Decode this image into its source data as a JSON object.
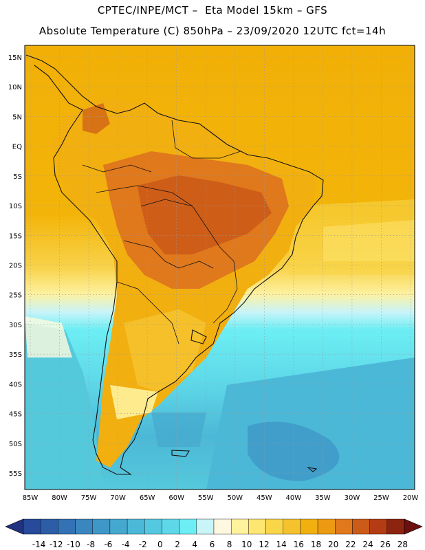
{
  "header": {
    "line1": "CPTEC/INPE/MCT –  Eta Model 15km – GFS",
    "line2": "Absolute Temperature (C) 850hPa – 23/09/2020 12UTC fct=14h"
  },
  "map": {
    "lon_labels": [
      "85W",
      "80W",
      "75W",
      "70W",
      "65W",
      "60W",
      "55W",
      "50W",
      "45W",
      "40W",
      "35W",
      "30W",
      "25W",
      "20W"
    ],
    "lat_labels": [
      "15N",
      "10N",
      "5N",
      "EQ",
      "5S",
      "10S",
      "15S",
      "20S",
      "25S",
      "30S",
      "35S",
      "40S",
      "45S",
      "50S",
      "55S"
    ],
    "grid": "dotted",
    "variable_colors": {
      "ocean_north": "#f2b007",
      "ocean_south": "#55c9dc",
      "land_warm": "#e6861c",
      "land_hot": "#d26a1e"
    }
  },
  "colorbar": {
    "labels": [
      "-14",
      "-12",
      "-10",
      "-8",
      "-6",
      "-4",
      "-2",
      "0",
      "2",
      "4",
      "6",
      "8",
      "10",
      "12",
      "14",
      "16",
      "18",
      "20",
      "22",
      "24",
      "26",
      "28"
    ],
    "colors": [
      "#274a9a",
      "#2c5da6",
      "#3372b4",
      "#3a86bf",
      "#3f97c7",
      "#45a8cf",
      "#4cb8d7",
      "#54c8e0",
      "#5ed8e8",
      "#6deef4",
      "#c9f4f8",
      "#fff8e0",
      "#fff29c",
      "#fde671",
      "#f9d548",
      "#f5c22d",
      "#f2af10",
      "#ec9a12",
      "#e0781c",
      "#cc5a18",
      "#b43c14",
      "#8c2410"
    ],
    "under_color": "#21337f",
    "over_color": "#6c0f0f"
  }
}
